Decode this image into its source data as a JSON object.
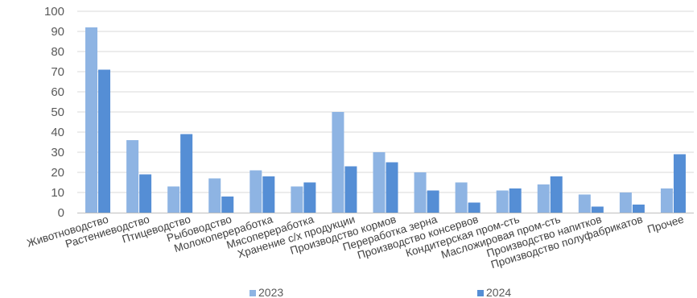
{
  "chart_data": {
    "type": "bar",
    "title": "",
    "xlabel": "",
    "ylabel": "",
    "ylim": [
      0,
      100
    ],
    "yticks": [
      0,
      10,
      20,
      30,
      40,
      50,
      60,
      70,
      80,
      90,
      100
    ],
    "grid": true,
    "legend_position": "bottom",
    "categories": [
      "Животноводство",
      "Растениеводство",
      "Птицеводство",
      "Рыбоводство",
      "Молокопереработка",
      "Мясопереработка",
      "Хранение с/х продукции",
      "Производство кормов",
      "Переработка зерна",
      "Производство консервов",
      "Кондитерская пром-сть",
      "Масложировая пром-сть",
      "Производство напитков",
      "Производство полуфабрикатов",
      "Прочее"
    ],
    "series": [
      {
        "name": "2023",
        "color": "#8EB4E3",
        "values": [
          92,
          36,
          13,
          17,
          21,
          13,
          50,
          30,
          20,
          15,
          11,
          14,
          9,
          10,
          12
        ]
      },
      {
        "name": "2024",
        "color": "#558ED5",
        "values": [
          71,
          19,
          39,
          8,
          18,
          15,
          23,
          25,
          11,
          5,
          12,
          18,
          3,
          4,
          29
        ]
      }
    ]
  }
}
